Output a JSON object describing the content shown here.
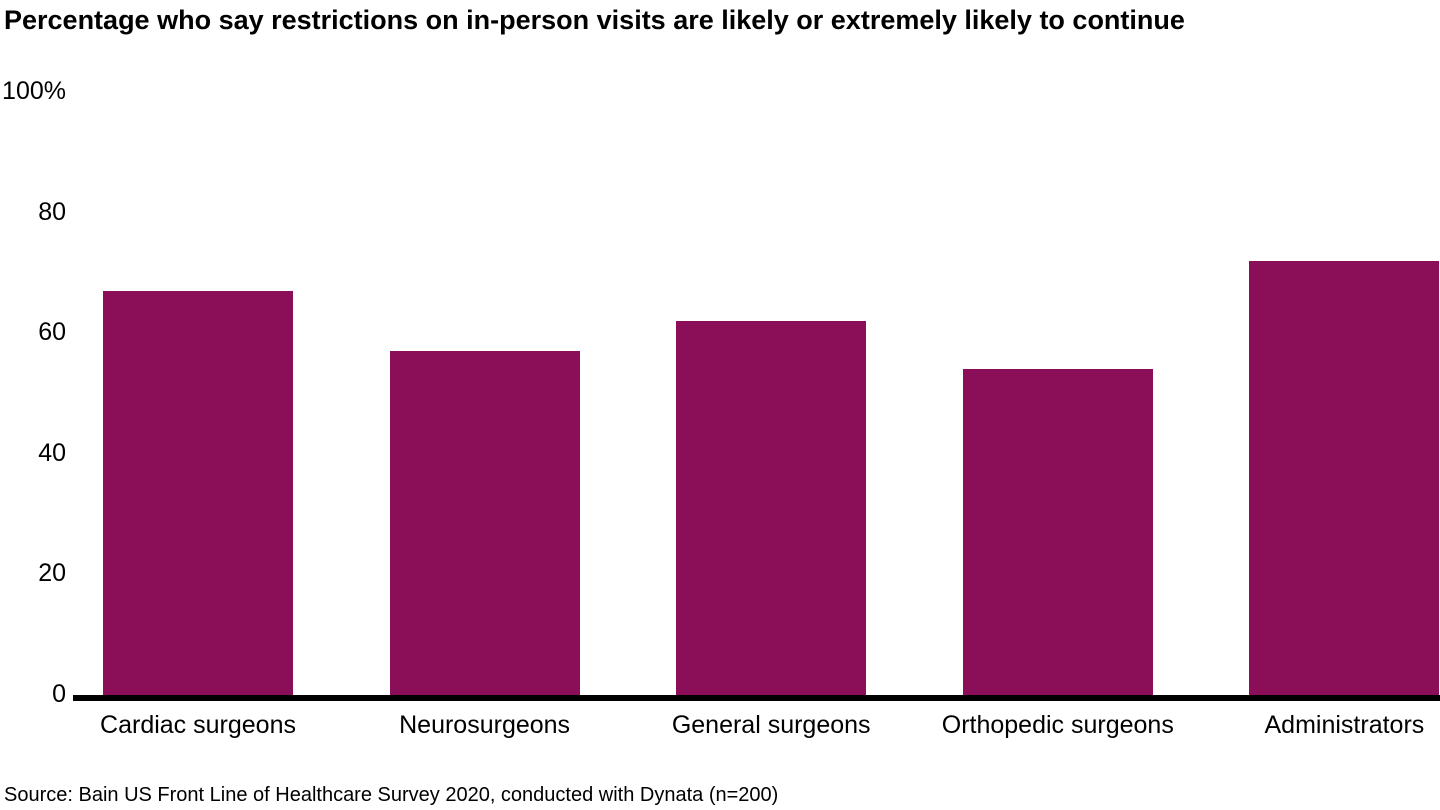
{
  "chart": {
    "title": "Percentage who say restrictions on in-person visits are likely or extremely likely to continue"
  },
  "chart_data": {
    "type": "bar",
    "title": "Percentage who say restrictions on in-person visits are likely or extremely likely to continue",
    "categories": [
      "Cardiac surgeons",
      "Neurosurgeons",
      "General surgeons",
      "Orthopedic surgeons",
      "Administrators"
    ],
    "values": [
      67,
      57,
      62,
      54,
      72
    ],
    "xlabel": "",
    "ylabel": "",
    "ylim": [
      0,
      100
    ],
    "grid": false,
    "legend_position": "none",
    "y_ticks": [
      {
        "label": "100%",
        "value": 100
      },
      {
        "label": "80",
        "value": 80
      },
      {
        "label": "60",
        "value": 60
      },
      {
        "label": "40",
        "value": 40
      },
      {
        "label": "20",
        "value": 20
      },
      {
        "label": "0",
        "value": 0
      }
    ],
    "bar_color": "#8B0E58",
    "axis_color": "#000000"
  },
  "source": "Source: Bain US Front Line of Healthcare Survey 2020, conducted with Dynata (n=200)"
}
